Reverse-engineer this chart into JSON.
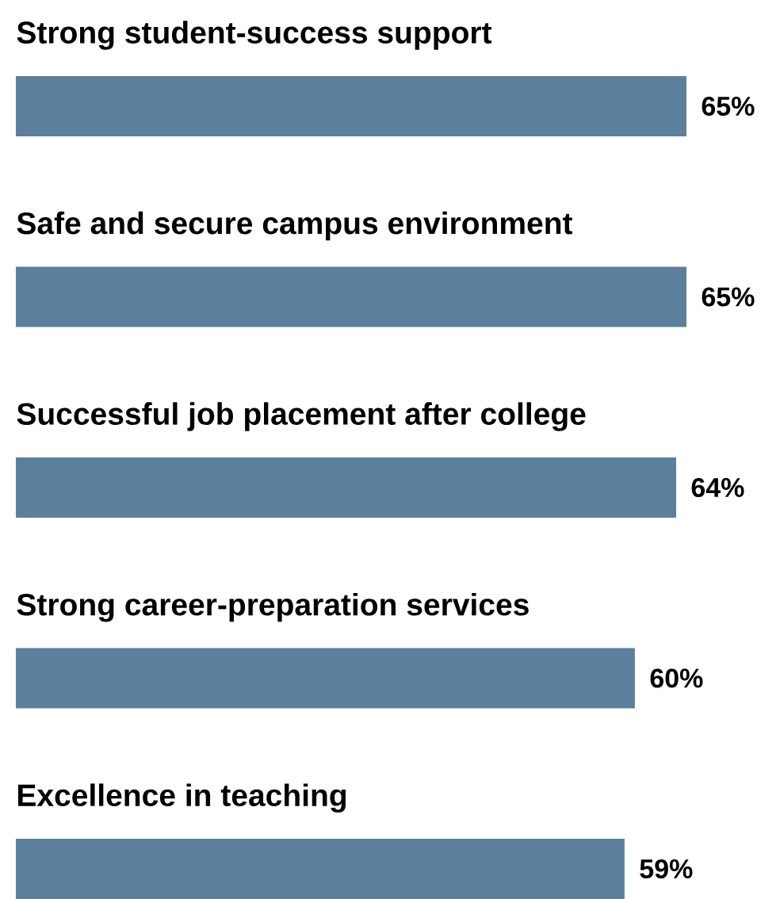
{
  "chart_data": {
    "type": "bar",
    "orientation": "horizontal",
    "categories": [
      "Strong student-success support",
      "Safe and secure campus environment",
      "Successful job placement after college",
      "Strong career-preparation services",
      "Excellence in teaching"
    ],
    "values": [
      65,
      65,
      64,
      60,
      59
    ],
    "value_labels": [
      "65%",
      "65%",
      "64%",
      "60%",
      "59%"
    ],
    "color": "#5b7f9c"
  }
}
